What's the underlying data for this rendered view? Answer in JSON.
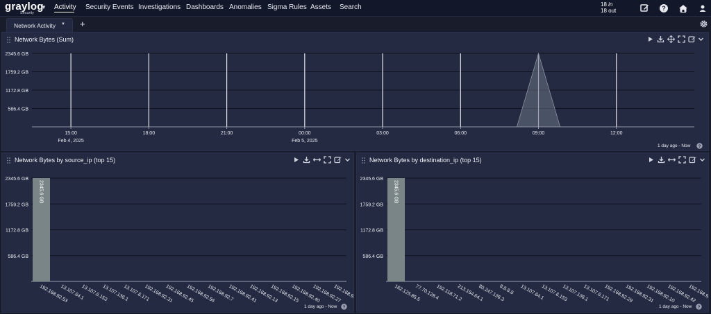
{
  "brand": {
    "name": "graylog",
    "sub": "Security"
  },
  "nav": {
    "items": [
      "Activity",
      "Security Events",
      "Investigations",
      "Dashboards",
      "Anomalies",
      "Sigma Rules",
      "Assets",
      "Search"
    ],
    "throughput_in_value": "18",
    "throughput_in_label": "in",
    "throughput_out_value": "18",
    "throughput_out_label": "out"
  },
  "tabs": {
    "active": "Network Activity",
    "add": "+"
  },
  "panels": {
    "sum": {
      "title": "Network Bytes (Sum)",
      "timerange": "1 day ago - Now"
    },
    "source": {
      "title": "Network Bytes by source_ip (top 15)",
      "timerange": "1 day ago - Now"
    },
    "destination": {
      "title": "Network Bytes by destination_ip (top 15)",
      "timerange": "1 day ago - Now"
    }
  },
  "chart_data": [
    {
      "type": "area",
      "title": "Network Bytes (Sum)",
      "ylabel": "",
      "yticks": [
        "586.4 GB",
        "1172.8 GB",
        "1759.2 GB",
        "2345.6 GB"
      ],
      "ytick_values": [
        586.4,
        1172.8,
        1759.2,
        2345.6
      ],
      "ylim": [
        0,
        2345.6
      ],
      "xticks": [
        "15:00",
        "18:00",
        "21:00",
        "00:00",
        "03:00",
        "06:00",
        "09:00",
        "12:00"
      ],
      "xtick_dates": [
        "Feb 4, 2025",
        "",
        "",
        "Feb 5, 2025",
        "",
        "",
        "",
        ""
      ],
      "x": [
        "2025-02-04 13:30",
        "2025-02-05 08:10",
        "2025-02-05 09:00",
        "2025-02-05 09:50",
        "2025-02-05 15:00"
      ],
      "values": [
        0,
        0,
        2345.6,
        0,
        0
      ],
      "grid": true,
      "color": "#6b7283"
    },
    {
      "type": "bar",
      "title": "Network Bytes by source_ip (top 15)",
      "categories": [
        "192.168.92.53",
        "13.107.64.1",
        "13.107.6.153",
        "13.107.136.1",
        "13.107.6.171",
        "192.168.92.31",
        "192.168.92.45",
        "192.168.92.56",
        "192.168.92.7",
        "192.168.92.41",
        "192.168.92.13",
        "192.168.92.15",
        "192.168.92.40",
        "192.168.92.27",
        "192.168.92.19"
      ],
      "values": [
        2345.6,
        0,
        0,
        0,
        0,
        0,
        0,
        0,
        0,
        0,
        0,
        0,
        0,
        0,
        0
      ],
      "data_labels": [
        "2345.6 GB",
        "",
        "",
        "",
        "",
        "",
        "",
        "",
        "",
        "",
        "",
        "",
        "",
        "",
        ""
      ],
      "yticks": [
        "586.4 GB",
        "1172.8 GB",
        "1759.2 GB",
        "2345.6 GB"
      ],
      "ytick_values": [
        586.4,
        1172.8,
        1759.2,
        2345.6
      ],
      "ylim": [
        0,
        2345.6
      ],
      "grid": true,
      "color": "#7a8587"
    },
    {
      "type": "bar",
      "title": "Network Bytes by destination_ip (top 15)",
      "categories": [
        "162.125.85.5",
        "77.70.128.4",
        "192.118.71.2",
        "213.154.64.1",
        "80.247.136.3",
        "8.8.8.8",
        "13.107.64.1",
        "13.107.6.153",
        "13.107.136.1",
        "13.107.6.171",
        "192.168.92.29",
        "192.168.92.31",
        "192.168.92.10",
        "192.168.92.42",
        "192.168.92.58"
      ],
      "values": [
        2345.6,
        0,
        0,
        0,
        0,
        0,
        0,
        0,
        0,
        0,
        0,
        0,
        0,
        0,
        0
      ],
      "data_labels": [
        "2345.6 GB",
        "",
        "",
        "",
        "",
        "",
        "",
        "",
        "",
        "",
        "",
        "",
        "",
        "",
        ""
      ],
      "yticks": [
        "586.4 GB",
        "1172.8 GB",
        "1759.2 GB",
        "2345.6 GB"
      ],
      "ytick_values": [
        586.4,
        1172.8,
        1759.2,
        2345.6
      ],
      "ylim": [
        0,
        2345.6
      ],
      "grid": true,
      "color": "#7a8587"
    }
  ]
}
